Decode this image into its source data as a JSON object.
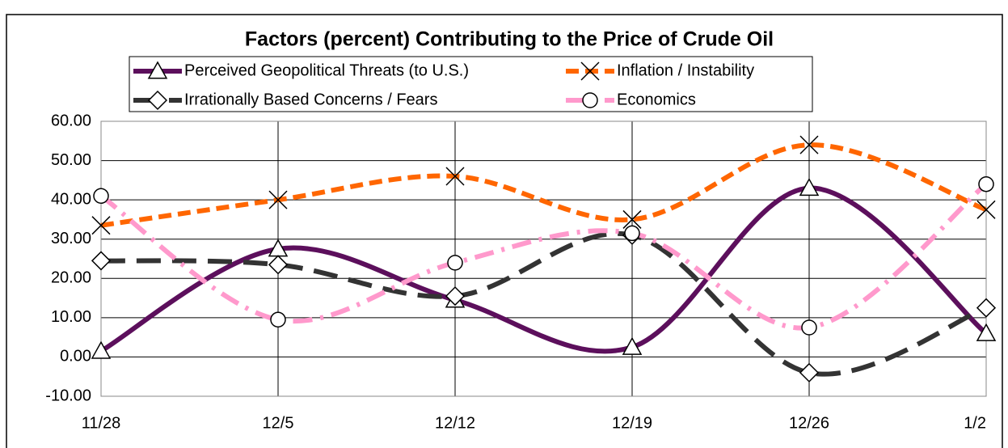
{
  "chart_data": {
    "type": "line",
    "title": "Factors (percent) Contributing to the Price of Crude Oil",
    "categories": [
      "11/28",
      "12/5",
      "12/12",
      "12/19",
      "12/26",
      "1/2"
    ],
    "series": [
      {
        "name": "Perceived Geopolitical Threats (to U.S.)",
        "color": "#5c0f5c",
        "dash": "solid",
        "marker": "triangle",
        "values": [
          1.5,
          27.5,
          14.5,
          2.5,
          43,
          6
        ]
      },
      {
        "name": "Inflation / Instability",
        "color": "#ff6600",
        "dash": "dash",
        "marker": "x",
        "values": [
          33.5,
          40,
          46,
          35,
          54,
          37.5
        ]
      },
      {
        "name": "Irrationally Based Concerns / Fears",
        "color": "#333333",
        "dash": "longdash",
        "marker": "diamond",
        "values": [
          24.5,
          23.5,
          15.5,
          31,
          -4,
          12.5
        ]
      },
      {
        "name": "Economics",
        "color": "#ff99cc",
        "dash": "dashdot",
        "marker": "circle",
        "values": [
          41,
          9.5,
          24,
          31.5,
          7.5,
          44
        ]
      }
    ],
    "ylim": [
      -10,
      60
    ],
    "yticks": [
      {
        "value": -10,
        "label": "-10.00"
      },
      {
        "value": 0,
        "label": "0.00"
      },
      {
        "value": 10,
        "label": "10.00"
      },
      {
        "value": 20,
        "label": "20.00"
      },
      {
        "value": 30,
        "label": "30.00"
      },
      {
        "value": 40,
        "label": "40.00"
      },
      {
        "value": 50,
        "label": "50.00"
      },
      {
        "value": 60,
        "label": "60.00"
      }
    ],
    "grid": true,
    "smooth": true
  }
}
